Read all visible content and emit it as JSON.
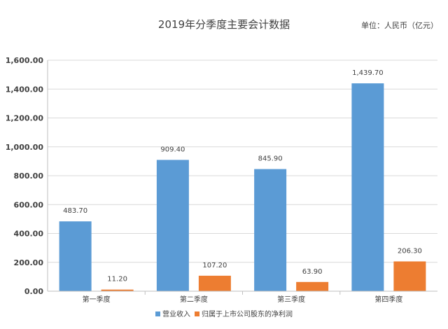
{
  "chart_data": {
    "type": "bar",
    "title": "2019年分季度主要会计数据",
    "unit_note": "单位：人民币（亿元）",
    "categories": [
      "第一季度",
      "第二季度",
      "第三季度",
      "第四季度"
    ],
    "series": [
      {
        "name": "营业收入",
        "values": [
          483.7,
          909.4,
          845.9,
          1439.7
        ],
        "labels": [
          "483.70",
          "909.40",
          "845.90",
          "1,439.70"
        ],
        "color": "#5B9BD5"
      },
      {
        "name": "归属于上市公司股东的净利润",
        "values": [
          11.2,
          107.2,
          63.9,
          206.3
        ],
        "labels": [
          "11.20",
          "107.20",
          "63.90",
          "206.30"
        ],
        "color": "#ED7D31"
      }
    ],
    "ylim": [
      0,
      1600
    ],
    "yticks": [
      {
        "value": 0,
        "label": "0.00"
      },
      {
        "value": 200,
        "label": "200.00"
      },
      {
        "value": 400,
        "label": "400.00"
      },
      {
        "value": 600,
        "label": "600.00"
      },
      {
        "value": 800,
        "label": "800.00"
      },
      {
        "value": 1000,
        "label": "1,000.00"
      },
      {
        "value": 1200,
        "label": "1,200.00"
      },
      {
        "value": 1400,
        "label": "1,400.00"
      },
      {
        "value": 1600,
        "label": "1,600.00"
      }
    ],
    "grid": true,
    "legend_position": "bottom",
    "axis_color": "#bfbfbf",
    "grid_color": "#d9d9d9",
    "text_color": "#404040"
  }
}
